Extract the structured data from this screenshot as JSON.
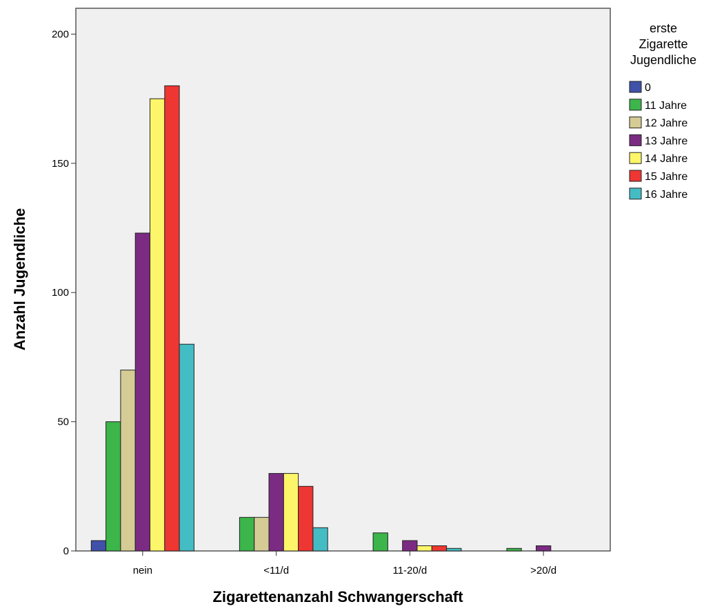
{
  "chart_data": {
    "type": "bar",
    "xlabel": "Zigarettenanzahl Schwangerschaft",
    "ylabel": "Anzahl Jugendliche",
    "categories": [
      "nein",
      "<11/d",
      "11-20/d",
      ">20/d"
    ],
    "ylim": [
      0,
      210
    ],
    "yticks": [
      0,
      50,
      100,
      150,
      200
    ],
    "grid": false,
    "legend_title": [
      "erste",
      "Zigarette",
      "Jugendliche"
    ],
    "legend_position": "right",
    "series": [
      {
        "name": "0",
        "color": "#3f51a8",
        "values": [
          4,
          0,
          0,
          0
        ]
      },
      {
        "name": "11 Jahre",
        "color": "#3cb54a",
        "values": [
          50,
          13,
          7,
          1
        ]
      },
      {
        "name": "12 Jahre",
        "color": "#d4cc94",
        "values": [
          70,
          13,
          0,
          0
        ]
      },
      {
        "name": "13 Jahre",
        "color": "#7b2b82",
        "values": [
          123,
          30,
          4,
          2
        ]
      },
      {
        "name": "14 Jahre",
        "color": "#fdf56a",
        "values": [
          175,
          30,
          2,
          0
        ]
      },
      {
        "name": "15 Jahre",
        "color": "#ee3633",
        "values": [
          180,
          25,
          2,
          0
        ]
      },
      {
        "name": "16 Jahre",
        "color": "#44bcc4",
        "values": [
          80,
          9,
          1,
          0
        ]
      }
    ]
  }
}
